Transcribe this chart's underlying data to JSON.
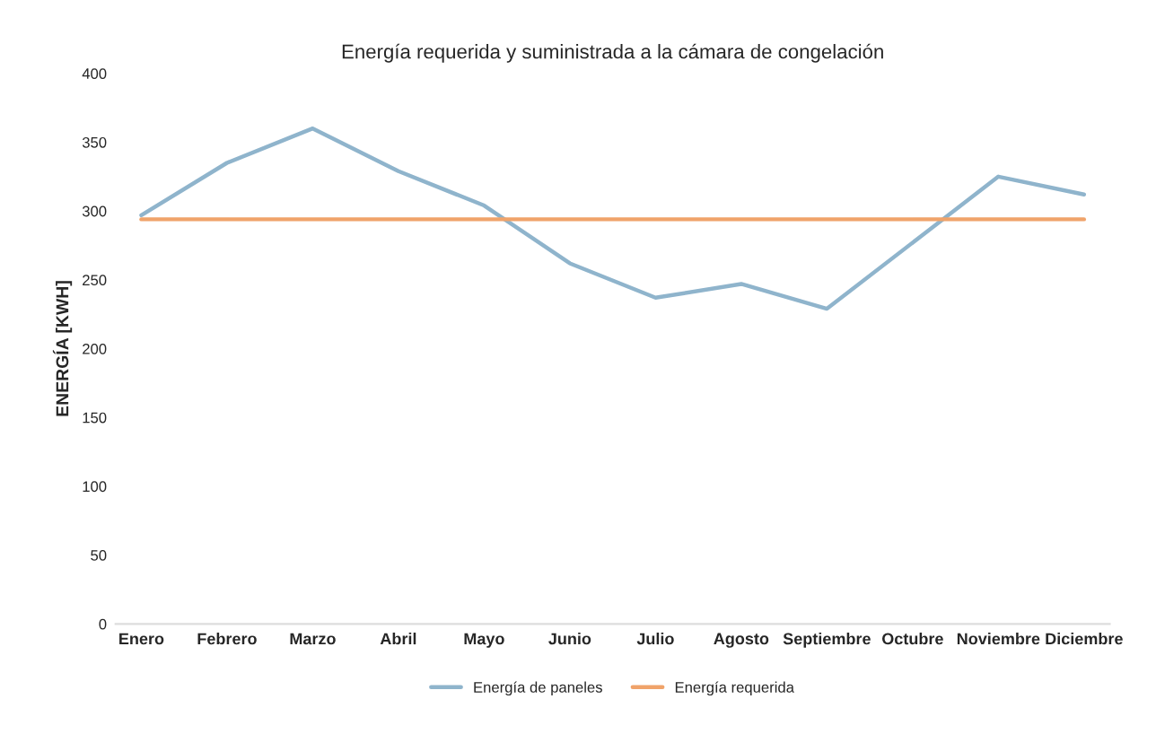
{
  "chart_data": {
    "type": "line",
    "title": "Energía requerida y suministrada a la cámara de congelación",
    "ylabel": "ENERGÍA [KWH]",
    "categories": [
      "Enero",
      "Febrero",
      "Marzo",
      "Abril",
      "Mayo",
      "Junio",
      "Julio",
      "Agosto",
      "Septiembre",
      "Octubre",
      "Noviembre",
      "Diciembre"
    ],
    "series": [
      {
        "name": "Energía de paneles",
        "color": "#8fb4cc",
        "values": [
          297,
          335,
          360,
          329,
          304,
          262,
          237,
          247,
          229,
          277,
          325,
          312
        ]
      },
      {
        "name": "Energía requerida",
        "color": "#f0a36a",
        "values": [
          294,
          294,
          294,
          294,
          294,
          294,
          294,
          294,
          294,
          294,
          294,
          294
        ]
      }
    ],
    "ylim": [
      0,
      400
    ],
    "yticks": [
      0,
      50,
      100,
      150,
      200,
      250,
      300,
      350,
      400
    ],
    "grid": false,
    "legend": "bottom",
    "marker": "none",
    "line_style": "solid"
  }
}
